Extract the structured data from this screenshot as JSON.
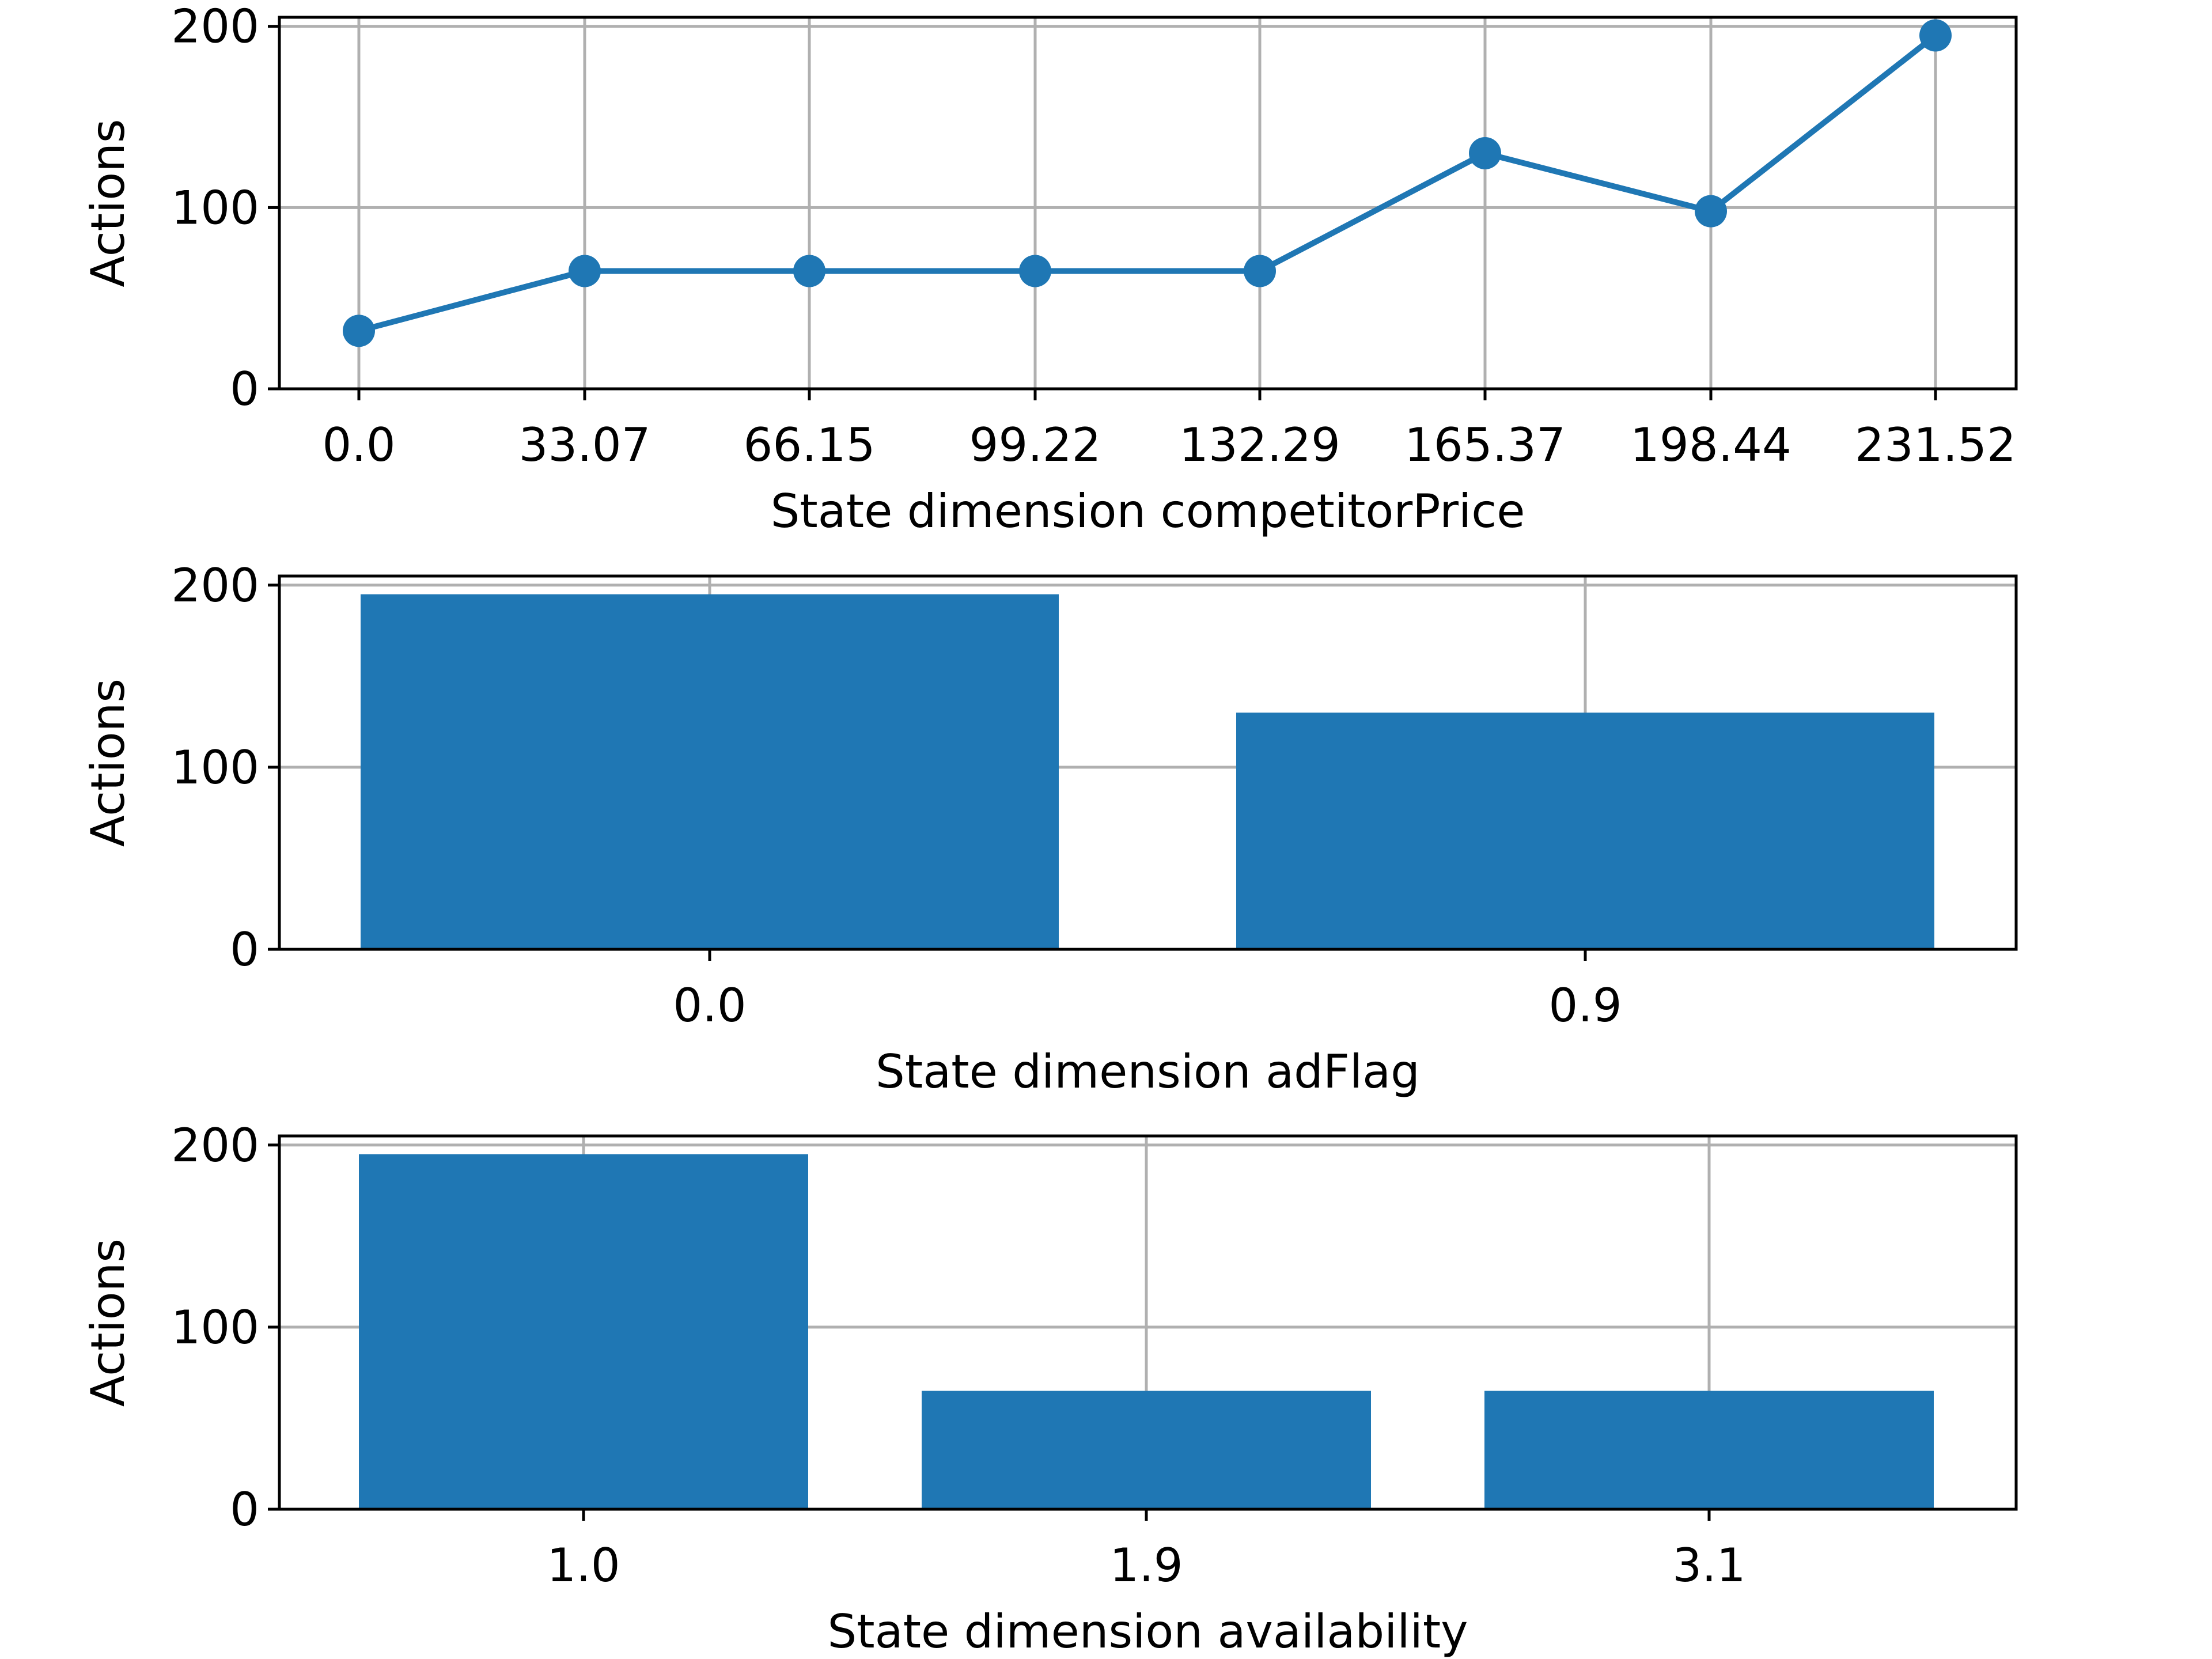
{
  "chart_data": [
    {
      "type": "line",
      "x_categories": [
        "0.0",
        "33.07",
        "66.15",
        "99.22",
        "132.29",
        "165.37",
        "198.44",
        "231.52"
      ],
      "values": [
        32,
        65,
        65,
        65,
        65,
        130,
        98,
        195
      ],
      "xlabel": "State dimension competitorPrice",
      "ylabel": "Actions",
      "ylim": [
        0,
        205
      ],
      "yticks": [
        "0",
        "100",
        "200"
      ],
      "grid": true,
      "color": "#1f77b4"
    },
    {
      "type": "bar",
      "x_categories": [
        "0.0",
        "0.9"
      ],
      "values": [
        195,
        130
      ],
      "xlabel": "State dimension adFlag",
      "ylabel": "Actions",
      "ylim": [
        0,
        205
      ],
      "yticks": [
        "0",
        "100",
        "200"
      ],
      "grid": true,
      "color": "#1f77b4"
    },
    {
      "type": "bar",
      "x_categories": [
        "1.0",
        "1.9",
        "3.1"
      ],
      "values": [
        195,
        65,
        65
      ],
      "xlabel": "State dimension availability",
      "ylabel": "Actions",
      "ylim": [
        0,
        205
      ],
      "yticks": [
        "0",
        "100",
        "200"
      ],
      "grid": true,
      "color": "#1f77b4"
    }
  ]
}
